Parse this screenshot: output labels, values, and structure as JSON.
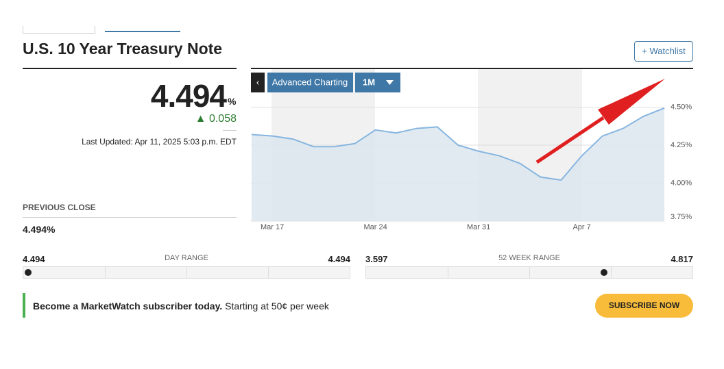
{
  "header": {
    "title": "U.S. 10 Year Treasury Note",
    "watchlist": "Watchlist"
  },
  "quote": {
    "price": 4.494,
    "unit": "%",
    "change": 0.058,
    "last_updated": "Last Updated: Apr 11, 2025 5:03 p.m. EDT"
  },
  "previous_close": {
    "label": "PREVIOUS CLOSE",
    "value": "4.494%"
  },
  "day_range": {
    "label": "DAY RANGE",
    "low": 4.494,
    "high": 4.494
  },
  "week52_range": {
    "label": "52 WEEK RANGE",
    "low": 3.597,
    "high": 4.817
  },
  "chart_controls": {
    "advanced": "Advanced Charting",
    "period": "1M"
  },
  "promo": {
    "bold": "Become a MarketWatch subscriber today.",
    "text": "Starting at 50¢ per week",
    "button": "SUBSCRIBE NOW"
  },
  "chart_data": {
    "type": "area",
    "color": "#86b5e0",
    "fill": "#dce6ef",
    "categories": [
      null,
      "Mar 17",
      null,
      null,
      null,
      null,
      "Mar 24",
      null,
      null,
      null,
      null,
      "Mar 31",
      null,
      null,
      null,
      null,
      "Apr 7",
      null,
      null,
      null,
      null
    ],
    "values": [
      4.32,
      4.31,
      4.29,
      4.24,
      4.24,
      4.26,
      4.35,
      4.33,
      4.36,
      4.37,
      4.25,
      4.21,
      4.18,
      4.13,
      4.04,
      4.02,
      4.18,
      4.31,
      4.36,
      4.44,
      4.494
    ],
    "ylim": [
      3.75,
      4.75
    ],
    "yticks": [
      {
        "value": 3.75,
        "label": "3.75%"
      },
      {
        "value": 4.0,
        "label": "4.00%"
      },
      {
        "value": 4.25,
        "label": "4.25%"
      },
      {
        "value": 4.5,
        "label": "4.50%"
      }
    ],
    "grid": true
  }
}
